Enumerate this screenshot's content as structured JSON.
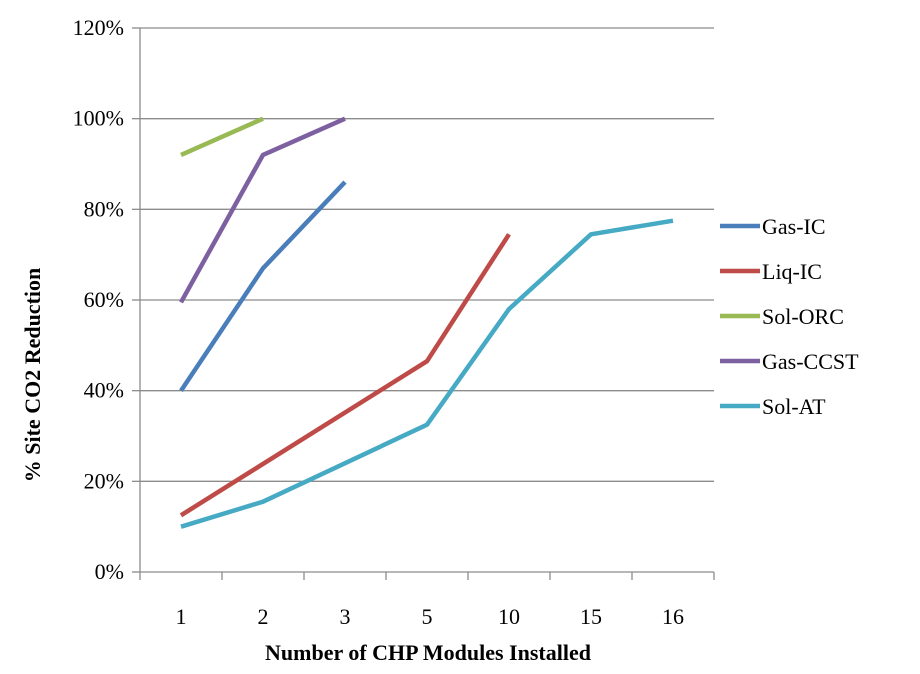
{
  "chart_data": {
    "type": "line",
    "title": "",
    "xlabel": "Number of CHP Modules Installed",
    "ylabel": "% Site CO2 Reduction",
    "categories": [
      "1",
      "2",
      "3",
      "5",
      "10",
      "15",
      "16"
    ],
    "yticks": [
      "0%",
      "20%",
      "40%",
      "60%",
      "80%",
      "100%",
      "120%"
    ],
    "ylim": [
      0,
      120
    ],
    "grid": "horizontal",
    "legend_position": "right",
    "series": [
      {
        "name": "Gas-IC",
        "color": "#4a7ebb",
        "values": [
          40,
          67,
          86,
          null,
          null,
          null,
          null
        ]
      },
      {
        "name": "Liq-IC",
        "color": "#be4b48",
        "values": [
          12.5,
          null,
          null,
          46.5,
          74.5,
          null,
          null
        ]
      },
      {
        "name": "Sol-ORC",
        "color": "#98b954",
        "values": [
          92,
          100,
          null,
          null,
          null,
          null,
          null
        ]
      },
      {
        "name": "Gas-CCST",
        "color": "#7d60a0",
        "values": [
          59.5,
          92,
          100,
          null,
          null,
          null,
          null
        ]
      },
      {
        "name": "Sol-AT",
        "color": "#46aac5",
        "values": [
          10,
          15.5,
          null,
          32.5,
          58,
          74.5,
          77.5
        ]
      }
    ]
  }
}
